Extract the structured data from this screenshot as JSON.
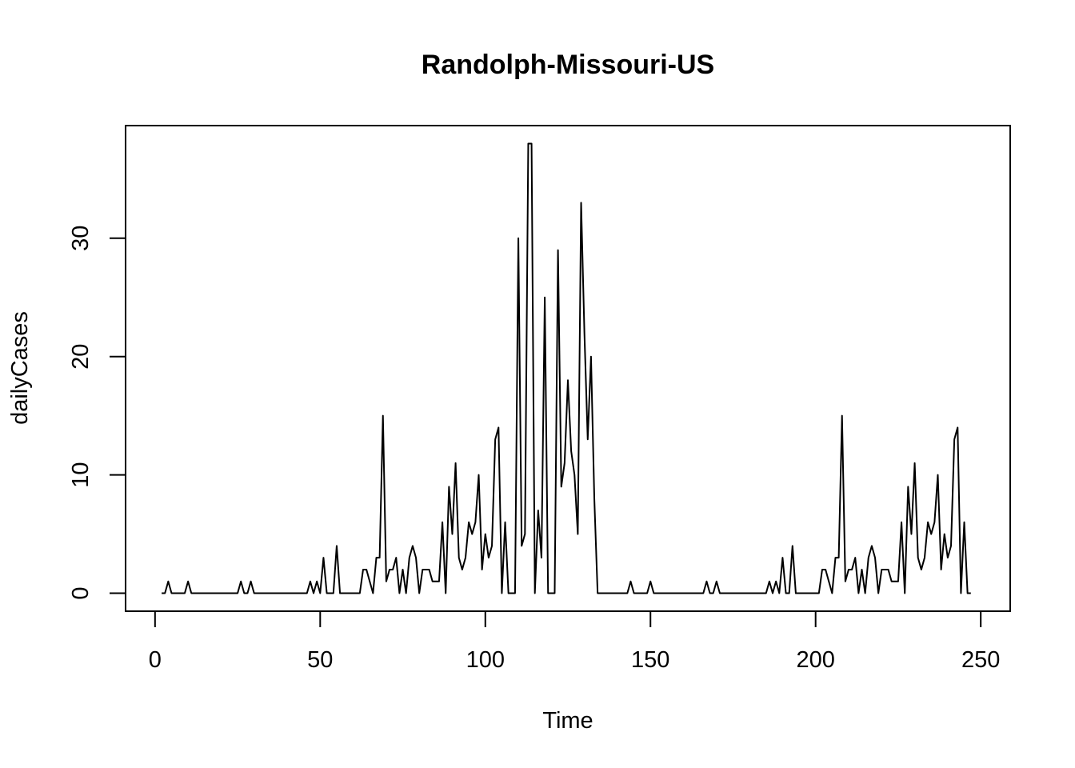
{
  "chart_data": {
    "type": "line",
    "title": "Randolph-Missouri-US",
    "xlabel": "Time",
    "ylabel": "dailyCases",
    "xlim": [
      1,
      249
    ],
    "ylim": [
      0,
      38
    ],
    "x_ticks": [
      "0",
      "50",
      "100",
      "150",
      "200",
      "250"
    ],
    "y_ticks": [
      "0",
      "10",
      "20",
      "30"
    ],
    "grid": false,
    "series": [
      {
        "color": "#000000",
        "x_start": 2,
        "values": [
          0,
          0,
          1,
          0,
          0,
          0,
          0,
          0,
          1,
          0,
          0,
          0,
          0,
          0,
          0,
          0,
          0,
          0,
          0,
          0,
          0,
          0,
          0,
          0,
          1,
          0,
          0,
          1,
          0,
          0,
          0,
          0,
          0,
          0,
          0,
          0,
          0,
          0,
          0,
          0,
          0,
          0,
          0,
          0,
          0,
          1,
          0,
          1,
          0,
          3,
          0,
          0,
          0,
          4,
          0,
          0,
          0,
          0,
          0,
          0,
          0,
          2,
          2,
          1,
          0,
          3,
          3,
          15,
          1,
          2,
          2,
          3,
          0,
          2,
          0,
          3,
          4,
          3,
          0,
          2,
          2,
          2,
          1,
          1,
          1,
          6,
          0,
          9,
          5,
          11,
          3,
          2,
          3,
          6,
          5,
          6,
          10,
          2,
          5,
          3,
          4,
          13,
          14,
          0,
          6,
          0,
          0,
          0,
          30,
          4,
          5,
          38,
          38,
          0,
          7,
          3,
          25,
          0,
          0,
          0,
          29,
          9,
          11,
          18,
          12,
          10,
          5,
          33,
          22,
          13,
          20,
          8,
          0,
          0,
          0,
          0,
          0,
          0,
          0,
          0,
          0,
          0,
          1,
          0,
          0,
          0,
          0,
          0,
          1,
          0,
          0,
          0,
          0,
          0,
          0,
          0,
          0,
          0,
          0,
          0,
          0,
          0,
          0,
          0,
          0,
          1,
          0,
          0,
          1,
          0,
          0,
          0,
          0,
          0,
          0,
          0,
          0,
          0,
          0,
          0,
          0,
          0,
          0,
          0,
          1,
          0,
          1,
          0,
          3,
          0,
          0,
          4,
          0,
          0,
          0,
          0,
          0,
          0,
          0,
          0,
          2,
          2,
          1,
          0,
          3,
          3,
          15,
          1,
          2,
          2,
          3,
          0,
          2,
          0,
          3,
          4,
          3,
          0,
          2,
          2,
          2,
          1,
          1,
          1,
          6,
          0,
          9,
          5,
          11,
          3,
          2,
          3,
          6,
          5,
          6,
          10,
          2,
          5,
          3,
          4,
          13,
          14,
          0,
          6,
          0,
          0
        ]
      }
    ]
  }
}
